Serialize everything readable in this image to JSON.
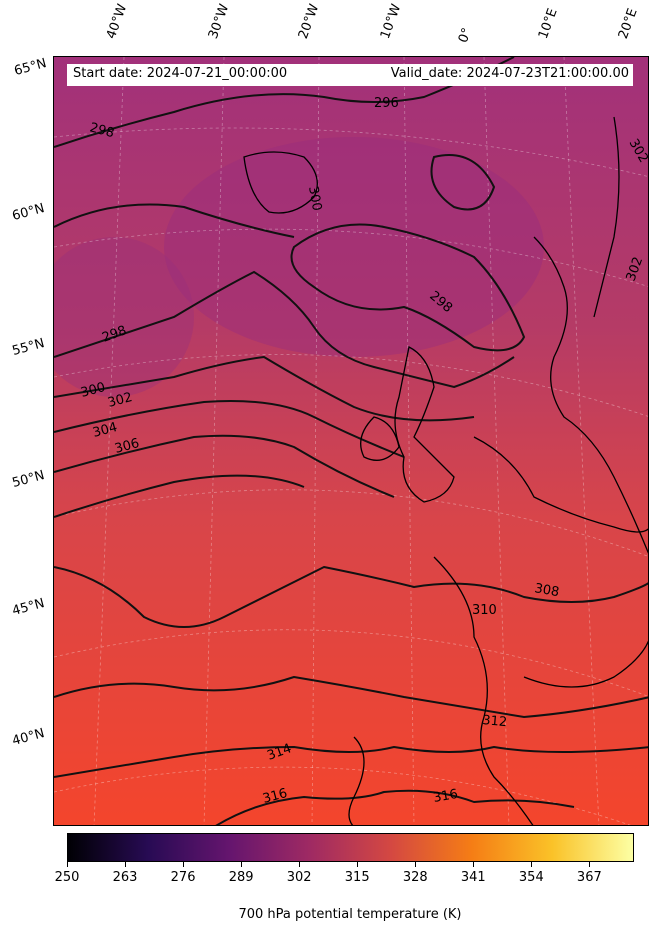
{
  "header": {
    "start_date": "Start date: 2024-07-21_00:00:00",
    "valid_date": "Valid_date: 2024-07-23T21:00:00.00"
  },
  "longitude_labels": [
    "40°W",
    "30°W",
    "20°W",
    "10°W",
    "0°",
    "10°E",
    "20°E"
  ],
  "latitude_labels": [
    "65°N",
    "60°N",
    "55°N",
    "50°N",
    "45°N",
    "40°N"
  ],
  "contour_labels": [
    "296",
    "298",
    "300",
    "302",
    "298",
    "298",
    "300",
    "302",
    "304",
    "306",
    "308",
    "310",
    "312",
    "314",
    "316",
    "316",
    "302"
  ],
  "colorbar": {
    "title": "700 hPa potential temperature (K)",
    "ticks": [
      "250",
      "263",
      "276",
      "289",
      "302",
      "315",
      "328",
      "341",
      "354",
      "367"
    ],
    "colors": [
      "#000004",
      "#280b54",
      "#65156e",
      "#9f2a63",
      "#d44842",
      "#f57d15",
      "#fac228",
      "#fcffa4"
    ]
  }
}
